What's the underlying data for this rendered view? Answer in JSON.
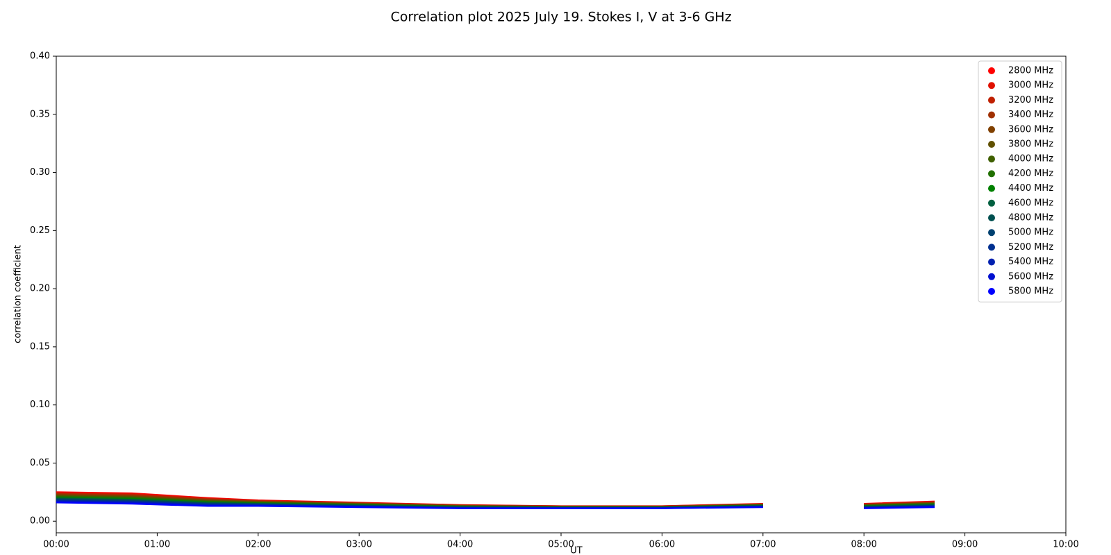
{
  "chart_data": {
    "type": "line",
    "title": "Correlation plot 2025 July 19. Stokes I, V at 3-6 GHz",
    "x_label": "UT",
    "y_label": "correlation coefficient",
    "xlim": [
      0,
      10
    ],
    "xticks": [
      {
        "value": 0,
        "label": "00:00"
      },
      {
        "value": 1,
        "label": "01:00"
      },
      {
        "value": 2,
        "label": "02:00"
      },
      {
        "value": 3,
        "label": "03:00"
      },
      {
        "value": 4,
        "label": "04:00"
      },
      {
        "value": 5,
        "label": "05:00"
      },
      {
        "value": 6,
        "label": "06:00"
      },
      {
        "value": 7,
        "label": "07:00"
      },
      {
        "value": 8,
        "label": "08:00"
      },
      {
        "value": 9,
        "label": "09:00"
      },
      {
        "value": 10,
        "label": "10:00"
      }
    ],
    "ylim": [
      -0.01,
      0.4
    ],
    "yticks": [
      {
        "value": 0,
        "label": "0.00"
      },
      {
        "value": 0.05,
        "label": "0.05"
      },
      {
        "value": 0.1,
        "label": "0.10"
      },
      {
        "value": 0.15,
        "label": "0.15"
      },
      {
        "value": 0.2,
        "label": "0.20"
      },
      {
        "value": 0.25,
        "label": "0.25"
      },
      {
        "value": 0.3,
        "label": "0.30"
      },
      {
        "value": 0.35,
        "label": "0.35"
      },
      {
        "value": 0.4,
        "label": "0.40"
      }
    ],
    "legend": "upper right",
    "x": [
      0,
      0.75,
      1.5,
      2,
      3,
      4,
      5,
      6,
      7,
      7.5,
      8,
      8.7
    ],
    "series": [
      {
        "name": "2800 MHz",
        "color": "#ff0000",
        "values": [
          0.025,
          0.024,
          0.02,
          0.018,
          0.016,
          0.014,
          0.013,
          0.013,
          0.015,
          null,
          0.015,
          0.017
        ]
      },
      {
        "name": "3000 MHz",
        "color": "#e01000",
        "values": [
          0.0244,
          0.0234,
          0.0195,
          0.0177,
          0.0157,
          0.0138,
          0.0129,
          0.0129,
          0.0148,
          null,
          0.0147,
          0.0167
        ]
      },
      {
        "name": "3200 MHz",
        "color": "#c02000",
        "values": [
          0.0238,
          0.0228,
          0.0191,
          0.0173,
          0.0155,
          0.0136,
          0.0127,
          0.0127,
          0.0146,
          null,
          0.0145,
          0.0163
        ]
      },
      {
        "name": "3400 MHz",
        "color": "#a03000",
        "values": [
          0.0232,
          0.0222,
          0.0186,
          0.017,
          0.0152,
          0.0134,
          0.0126,
          0.0126,
          0.0144,
          null,
          0.0142,
          0.016
        ]
      },
      {
        "name": "3600 MHz",
        "color": "#804000",
        "values": [
          0.0226,
          0.0216,
          0.0181,
          0.0167,
          0.0149,
          0.0132,
          0.0125,
          0.0125,
          0.0142,
          null,
          0.0139,
          0.0157
        ]
      },
      {
        "name": "3800 MHz",
        "color": "#605000",
        "values": [
          0.022,
          0.021,
          0.0177,
          0.0163,
          0.0147,
          0.013,
          0.0123,
          0.0123,
          0.014,
          null,
          0.0137,
          0.0153
        ]
      },
      {
        "name": "4000 MHz",
        "color": "#406000",
        "values": [
          0.0214,
          0.0204,
          0.0172,
          0.016,
          0.0144,
          0.0128,
          0.0122,
          0.0122,
          0.0138,
          null,
          0.0134,
          0.015
        ]
      },
      {
        "name": "4200 MHz",
        "color": "#207000",
        "values": [
          0.0208,
          0.0198,
          0.0167,
          0.0157,
          0.0141,
          0.0126,
          0.0121,
          0.0121,
          0.0136,
          null,
          0.0131,
          0.0147
        ]
      },
      {
        "name": "4400 MHz",
        "color": "#008000",
        "values": [
          0.0202,
          0.0192,
          0.0163,
          0.0153,
          0.0139,
          0.0124,
          0.0119,
          0.0119,
          0.0134,
          null,
          0.0129,
          0.0143
        ]
      },
      {
        "name": "4600 MHz",
        "color": "#006040",
        "values": [
          0.0196,
          0.0186,
          0.0158,
          0.015,
          0.0136,
          0.0122,
          0.0118,
          0.0118,
          0.0132,
          null,
          0.0126,
          0.014
        ]
      },
      {
        "name": "4800 MHz",
        "color": "#005050",
        "values": [
          0.019,
          0.018,
          0.0153,
          0.0147,
          0.0133,
          0.012,
          0.0117,
          0.0117,
          0.013,
          null,
          0.0123,
          0.0137
        ]
      },
      {
        "name": "5000 MHz",
        "color": "#004070",
        "values": [
          0.0184,
          0.0174,
          0.0149,
          0.0143,
          0.0131,
          0.0118,
          0.0115,
          0.0115,
          0.0128,
          null,
          0.0121,
          0.0133
        ]
      },
      {
        "name": "5200 MHz",
        "color": "#003090",
        "values": [
          0.0178,
          0.0168,
          0.0144,
          0.014,
          0.0128,
          0.0116,
          0.0114,
          0.0114,
          0.0126,
          null,
          0.0118,
          0.013
        ]
      },
      {
        "name": "5400 MHz",
        "color": "#0020b0",
        "values": [
          0.0172,
          0.0162,
          0.0139,
          0.0137,
          0.0125,
          0.0114,
          0.0113,
          0.0113,
          0.0124,
          null,
          0.0115,
          0.0127
        ]
      },
      {
        "name": "5600 MHz",
        "color": "#0010d0",
        "values": [
          0.0166,
          0.0156,
          0.0135,
          0.0133,
          0.0123,
          0.0112,
          0.0111,
          0.0111,
          0.0122,
          null,
          0.0113,
          0.0123
        ]
      },
      {
        "name": "5800 MHz",
        "color": "#0000ff",
        "values": [
          0.016,
          0.015,
          0.013,
          0.013,
          0.012,
          0.011,
          0.011,
          0.011,
          0.012,
          null,
          0.011,
          0.012
        ]
      }
    ]
  }
}
